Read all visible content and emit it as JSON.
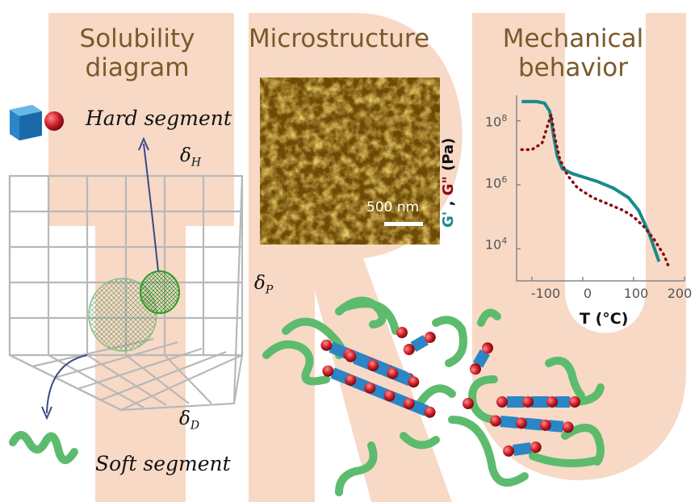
{
  "titles": {
    "solubility": [
      "Solubility",
      "diagram"
    ],
    "microstructure": "Microstructure",
    "mechanical": [
      "Mechanical",
      "behavior"
    ]
  },
  "labels": {
    "hard_segment": "Hard segment",
    "soft_segment": "Soft segment",
    "delta_h": {
      "symbol": "δ",
      "sub": "H"
    },
    "delta_p": {
      "symbol": "δ",
      "sub": "P"
    },
    "delta_d": {
      "symbol": "δ",
      "sub": "D"
    },
    "scale_bar": "500 nm"
  },
  "colors": {
    "background_letters": "#f7d9c6",
    "title_text": "#7a5a2a",
    "green_chain": "#5dbb6e",
    "hard_block": "#2a86c6",
    "hard_sphere": "#d0202a",
    "storage_modulus": "#1a8a8a",
    "loss_modulus": "#8b0a12"
  },
  "chart_data": {
    "type": "line",
    "xlabel": "T (°C)",
    "ylabel_parts": [
      "G'",
      " , ",
      "G\"",
      " (Pa)"
    ],
    "x_ticks": [
      "-100",
      "0",
      "100",
      "200"
    ],
    "y_ticks": [
      {
        "base": "10",
        "exp": "4"
      },
      {
        "base": "10",
        "exp": "6"
      },
      {
        "base": "10",
        "exp": "8"
      }
    ],
    "xlim": [
      -130,
      200
    ],
    "ylim_log10": [
      3,
      8.8
    ],
    "series": [
      {
        "color": "#1a8a8a",
        "style": "solid",
        "points": [
          [
            -120,
            8.6
          ],
          [
            -90,
            8.6
          ],
          [
            -75,
            8.55
          ],
          [
            -65,
            8.3
          ],
          [
            -58,
            7.6
          ],
          [
            -50,
            6.9
          ],
          [
            -40,
            6.5
          ],
          [
            -20,
            6.35
          ],
          [
            0,
            6.25
          ],
          [
            30,
            6.1
          ],
          [
            60,
            5.9
          ],
          [
            90,
            5.6
          ],
          [
            110,
            5.2
          ],
          [
            130,
            4.5
          ],
          [
            150,
            3.6
          ]
        ]
      },
      {
        "color": "#8b0a12",
        "style": "dotted",
        "points": [
          [
            -120,
            7.1
          ],
          [
            -100,
            7.1
          ],
          [
            -80,
            7.3
          ],
          [
            -70,
            7.8
          ],
          [
            -62,
            8.2
          ],
          [
            -55,
            7.5
          ],
          [
            -45,
            6.8
          ],
          [
            -30,
            6.3
          ],
          [
            -10,
            5.9
          ],
          [
            20,
            5.6
          ],
          [
            50,
            5.4
          ],
          [
            80,
            5.2
          ],
          [
            100,
            5.0
          ],
          [
            120,
            4.7
          ],
          [
            140,
            4.3
          ],
          [
            160,
            3.8
          ],
          [
            170,
            3.4
          ]
        ]
      }
    ]
  }
}
